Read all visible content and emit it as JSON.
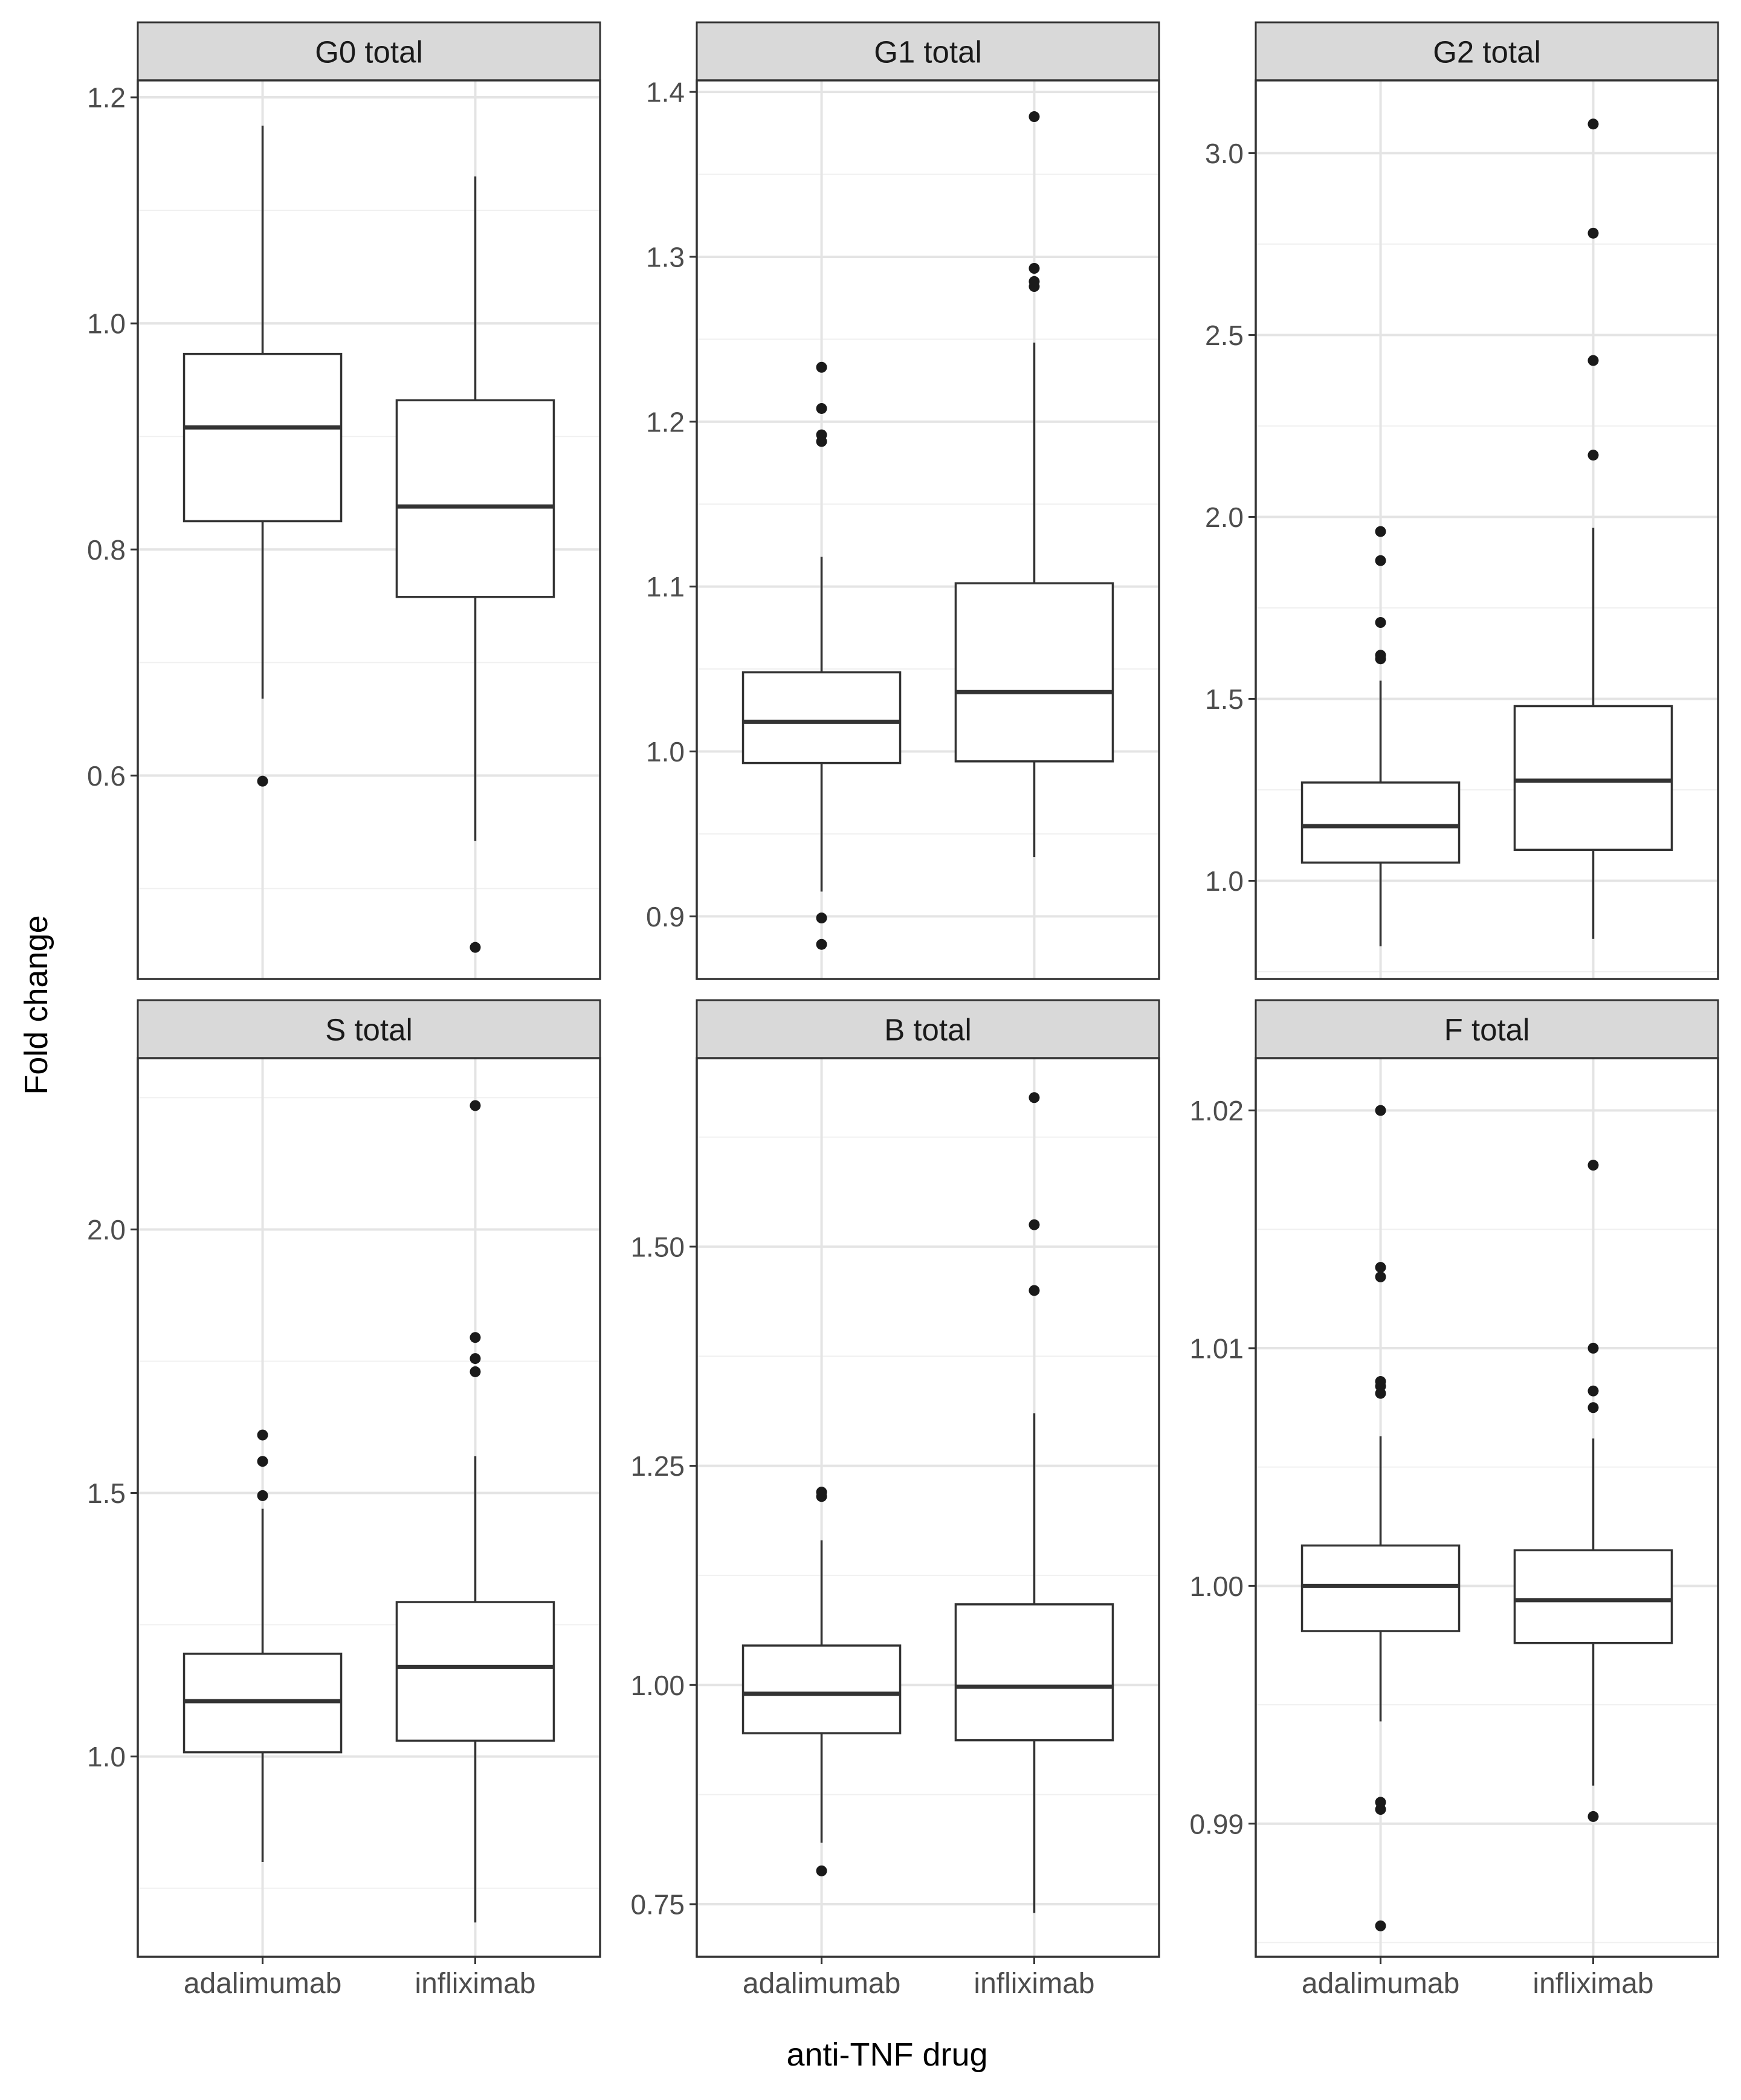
{
  "chart_data": {
    "type": "boxplot",
    "ylabel": "Fold change",
    "xlabel": "anti-TNF drug",
    "categories": [
      "adalimumab",
      "infliximab"
    ],
    "panels": [
      {
        "title": "G0 total",
        "ylim": [
          0.42,
          1.215
        ],
        "ticks": [
          0.6,
          0.8,
          1.0,
          1.2
        ],
        "tick_labels": [
          "0.6",
          "0.8",
          "1.0",
          "1.2"
        ],
        "minor_ticks": [
          0.5,
          0.7,
          0.9,
          1.1
        ],
        "boxes": [
          {
            "q1": 0.825,
            "median": 0.908,
            "q3": 0.973,
            "whisker_low": 0.668,
            "whisker_high": 1.175,
            "outliers": [
              0.595
            ]
          },
          {
            "q1": 0.758,
            "median": 0.838,
            "q3": 0.932,
            "whisker_low": 0.542,
            "whisker_high": 1.13,
            "outliers": [
              0.448
            ]
          }
        ]
      },
      {
        "title": "G1 total",
        "ylim": [
          0.862,
          1.407
        ],
        "ticks": [
          0.9,
          1.0,
          1.1,
          1.2,
          1.3,
          1.4
        ],
        "tick_labels": [
          "0.9",
          "1.0",
          "1.1",
          "1.2",
          "1.3",
          "1.4"
        ],
        "minor_ticks": [
          0.95,
          1.05,
          1.15,
          1.25,
          1.35
        ],
        "boxes": [
          {
            "q1": 0.993,
            "median": 1.018,
            "q3": 1.048,
            "whisker_low": 0.915,
            "whisker_high": 1.118,
            "outliers": [
              0.899,
              0.883,
              1.188,
              1.192,
              1.208,
              1.233
            ]
          },
          {
            "q1": 0.994,
            "median": 1.036,
            "q3": 1.102,
            "whisker_low": 0.936,
            "whisker_high": 1.248,
            "outliers": [
              1.282,
              1.285,
              1.293,
              1.385
            ]
          }
        ]
      },
      {
        "title": "G2 total",
        "ylim": [
          0.73,
          3.2
        ],
        "ticks": [
          1.0,
          1.5,
          2.0,
          2.5,
          3.0
        ],
        "tick_labels": [
          "1.0",
          "1.5",
          "2.0",
          "2.5",
          "3.0"
        ],
        "minor_ticks": [
          0.75,
          1.25,
          1.75,
          2.25,
          2.75
        ],
        "boxes": [
          {
            "q1": 1.05,
            "median": 1.15,
            "q3": 1.27,
            "whisker_low": 0.82,
            "whisker_high": 1.55,
            "outliers": [
              1.61,
              1.62,
              1.71,
              1.88,
              1.96
            ]
          },
          {
            "q1": 1.085,
            "median": 1.275,
            "q3": 1.48,
            "whisker_low": 0.84,
            "whisker_high": 1.97,
            "outliers": [
              2.17,
              2.43,
              2.78,
              3.08
            ]
          }
        ]
      },
      {
        "title": "S total",
        "ylim": [
          0.62,
          2.325
        ],
        "ticks": [
          1.0,
          1.5,
          2.0
        ],
        "tick_labels": [
          "1.0",
          "1.5",
          "2.0"
        ],
        "minor_ticks": [
          0.75,
          1.25,
          1.75,
          2.25
        ],
        "boxes": [
          {
            "q1": 1.008,
            "median": 1.105,
            "q3": 1.195,
            "whisker_low": 0.8,
            "whisker_high": 1.47,
            "outliers": [
              1.495,
              1.56,
              1.61
            ]
          },
          {
            "q1": 1.03,
            "median": 1.17,
            "q3": 1.293,
            "whisker_low": 0.685,
            "whisker_high": 1.57,
            "outliers": [
              1.73,
              1.755,
              1.795,
              2.235
            ]
          }
        ]
      },
      {
        "title": "B total",
        "ylim": [
          0.69,
          1.715
        ],
        "ticks": [
          0.75,
          1.0,
          1.25,
          1.5
        ],
        "tick_labels": [
          "0.75",
          "1.00",
          "1.25",
          "1.50"
        ],
        "minor_ticks": [
          0.875,
          1.125,
          1.375,
          1.625
        ],
        "boxes": [
          {
            "q1": 0.945,
            "median": 0.99,
            "q3": 1.045,
            "whisker_low": 0.82,
            "whisker_high": 1.165,
            "outliers": [
              0.788,
              1.215,
              1.22
            ]
          },
          {
            "q1": 0.937,
            "median": 0.998,
            "q3": 1.092,
            "whisker_low": 0.74,
            "whisker_high": 1.31,
            "outliers": [
              1.45,
              1.525,
              1.67
            ]
          }
        ]
      },
      {
        "title": "F total",
        "ylim": [
          0.9844,
          1.0222
        ],
        "ticks": [
          0.99,
          1.0,
          1.01,
          1.02
        ],
        "tick_labels": [
          "0.99",
          "1.00",
          "1.01",
          "1.02"
        ],
        "minor_ticks": [
          0.985,
          0.995,
          1.005,
          1.015
        ],
        "boxes": [
          {
            "q1": 0.9981,
            "median": 1.0,
            "q3": 1.0017,
            "whisker_low": 0.9943,
            "whisker_high": 1.0063,
            "outliers": [
              0.9857,
              0.9906,
              0.9909,
              1.0081,
              1.0084,
              1.0086,
              1.013,
              1.0134,
              1.02
            ]
          },
          {
            "q1": 0.9976,
            "median": 0.9994,
            "q3": 1.0015,
            "whisker_low": 0.9916,
            "whisker_high": 1.0062,
            "outliers": [
              0.9903,
              1.0075,
              1.0082,
              1.01,
              1.0177
            ]
          }
        ]
      }
    ]
  }
}
